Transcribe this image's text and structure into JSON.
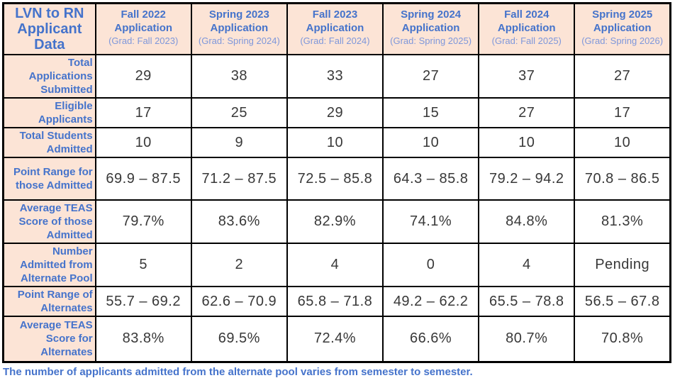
{
  "colors": {
    "header_bg": "#FCE4D6",
    "header_text_blue": "#4573CB",
    "subheader_text_blue": "#7E97DB",
    "data_text": "#383838",
    "grid_border": "#000000"
  },
  "table": {
    "corner_title": "LVN to RN Applicant Data",
    "columns": [
      {
        "term": "Fall 2022 Application",
        "grad": "(Grad: Fall 2023)"
      },
      {
        "term": "Spring 2023 Application",
        "grad": "(Grad: Spring 2024)"
      },
      {
        "term": "Fall 2023 Application",
        "grad": "(Grad: Fall 2024)"
      },
      {
        "term": "Spring 2024 Application",
        "grad": "(Grad: Spring 2025)"
      },
      {
        "term": "Fall 2024 Application",
        "grad": "(Grad: Fall 2025)"
      },
      {
        "term": "Spring 2025 Application",
        "grad": "(Grad: Spring 2026)"
      }
    ],
    "rows": [
      {
        "label": "Total Applications Submitted",
        "values": [
          "29",
          "38",
          "33",
          "27",
          "37",
          "27"
        ]
      },
      {
        "label": "Eligible Applicants",
        "values": [
          "17",
          "25",
          "29",
          "15",
          "27",
          "17"
        ]
      },
      {
        "label": "Total Students Admitted",
        "values": [
          "10",
          "9",
          "10",
          "10",
          "10",
          "10"
        ]
      },
      {
        "label": "Point Range for those Admitted",
        "values": [
          "69.9 – 87.5",
          "71.2 – 87.5",
          "72.5 – 85.8",
          "64.3 – 85.8",
          "79.2 – 94.2",
          "70.8 – 86.5"
        ]
      },
      {
        "label": "Average TEAS Score of those Admitted",
        "values": [
          "79.7%",
          "83.6%",
          "82.9%",
          "74.1%",
          "84.8%",
          "81.3%"
        ]
      },
      {
        "label": "Number Admitted from Alternate Pool",
        "values": [
          "5",
          "2",
          "4",
          "0",
          "4",
          "Pending"
        ]
      },
      {
        "label": "Point Range of Alternates",
        "values": [
          "55.7 – 69.2",
          "62.6 – 70.9",
          "65.8 – 71.8",
          "49.2 – 62.2",
          "65.5 – 78.8",
          "56.5 – 67.8"
        ]
      },
      {
        "label": "Average TEAS Score for Alternates",
        "values": [
          "83.8%",
          "69.5%",
          "72.4%",
          "66.6%",
          "80.7%",
          "70.8%"
        ]
      }
    ],
    "footnote": "The number of applicants admitted from the alternate pool varies from semester to semester."
  }
}
